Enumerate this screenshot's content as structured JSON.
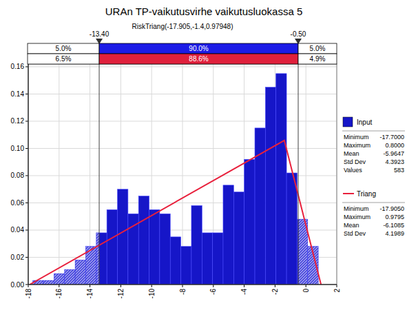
{
  "chart_data": {
    "type": "histogram",
    "title": "URAn TP-vaikutusvirhe vaikutusluokassa 5",
    "subtitle": "RiskTriang(-17.905,-1.4,0.97948)",
    "bins": [
      -17.7,
      -17.015,
      -16.33,
      -15.644,
      -14.959,
      -14.274,
      -13.589,
      -12.904,
      -12.219,
      -11.533,
      -10.848,
      -10.163,
      -9.478,
      -8.793,
      -8.107,
      -7.422,
      -6.737,
      -6.052,
      -5.367,
      -4.681,
      -3.996,
      -3.311,
      -2.626,
      -1.941,
      -1.256,
      -0.57,
      0.115,
      0.8
    ],
    "series": [
      {
        "name": "Input",
        "type": "bar",
        "color": "#1616c8",
        "values": [
          0.003,
          0.003,
          0.008,
          0.011,
          0.018,
          0.028,
          0.038,
          0.055,
          0.07,
          0.052,
          0.065,
          0.055,
          0.052,
          0.035,
          0.028,
          0.058,
          0.038,
          0.038,
          0.073,
          0.068,
          0.092,
          0.115,
          0.145,
          0.155,
          0.082,
          0.048,
          0.028
        ],
        "stats": [
          {
            "label": "Minimum",
            "value": "-17.7000"
          },
          {
            "label": "Maximum",
            "value": "0.8000"
          },
          {
            "label": "Mean",
            "value": "-5.9647"
          },
          {
            "label": "Std Dev",
            "value": "4.3923"
          },
          {
            "label": "Values",
            "value": "583"
          }
        ]
      },
      {
        "name": "Triang",
        "type": "line",
        "color": "#e8203c",
        "x": [
          -17.905,
          -1.4,
          0.97948
        ],
        "values": [
          0,
          0.1059,
          0
        ],
        "stats": [
          {
            "label": "Minimum",
            "value": "-17.9050"
          },
          {
            "label": "Maximum",
            "value": "0.9795"
          },
          {
            "label": "Mean",
            "value": "-6.1085"
          },
          {
            "label": "Std Dev",
            "value": "4.1989"
          }
        ]
      }
    ],
    "xlim": [
      -18,
      2
    ],
    "xticks": [
      -18,
      -16,
      -14,
      -12,
      -10,
      -8,
      -6,
      -4,
      -2,
      0,
      2
    ],
    "ylim": [
      0,
      0.162
    ],
    "yticks": [
      {
        "value": 0,
        "label": "0.00"
      },
      {
        "value": 0.02,
        "label": "0.02"
      },
      {
        "value": 0.04,
        "label": "0.04"
      },
      {
        "value": 0.06,
        "label": "0.06"
      },
      {
        "value": 0.08,
        "label": "0.08"
      },
      {
        "value": 0.1,
        "label": "0.10"
      },
      {
        "value": 0.12,
        "label": "0.12"
      },
      {
        "value": 0.14,
        "label": "0.14"
      },
      {
        "value": 0.16,
        "label": "0.16"
      }
    ],
    "grid": true,
    "legend": "right",
    "markers": [
      {
        "value": -13.4,
        "label": "-13.40"
      },
      {
        "value": -0.5,
        "label": "-0.50"
      }
    ],
    "percent_bands": [
      {
        "color": "#1c1ce6",
        "labels": [
          "5.0%",
          "90.0%",
          "5.0%"
        ]
      },
      {
        "color": "#e0203c",
        "labels": [
          "6.5%",
          "88.6%",
          "4.9%"
        ]
      }
    ]
  }
}
